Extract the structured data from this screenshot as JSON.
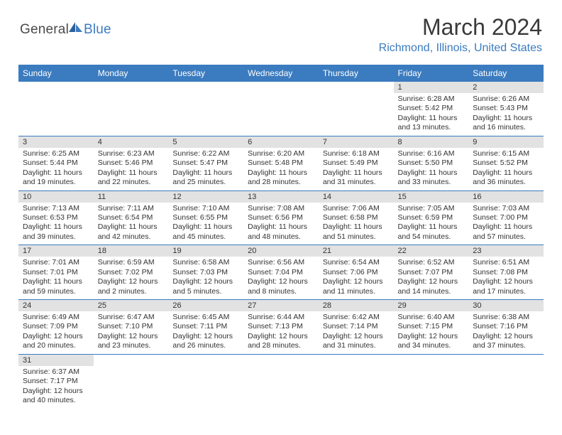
{
  "logo": {
    "general": "General",
    "blue": "Blue"
  },
  "title": "March 2024",
  "location": "Richmond, Illinois, United States",
  "colors": {
    "header_bg": "#3b7bbf",
    "day_number_bg": "#e2e2e2",
    "cell_border": "#3b7bbf",
    "text": "#333333",
    "location_color": "#3b7bbf"
  },
  "weekdays": [
    "Sunday",
    "Monday",
    "Tuesday",
    "Wednesday",
    "Thursday",
    "Friday",
    "Saturday"
  ],
  "weeks": [
    [
      null,
      null,
      null,
      null,
      null,
      {
        "day": "1",
        "sunrise": "Sunrise: 6:28 AM",
        "sunset": "Sunset: 5:42 PM",
        "daylight": "Daylight: 11 hours and 13 minutes."
      },
      {
        "day": "2",
        "sunrise": "Sunrise: 6:26 AM",
        "sunset": "Sunset: 5:43 PM",
        "daylight": "Daylight: 11 hours and 16 minutes."
      }
    ],
    [
      {
        "day": "3",
        "sunrise": "Sunrise: 6:25 AM",
        "sunset": "Sunset: 5:44 PM",
        "daylight": "Daylight: 11 hours and 19 minutes."
      },
      {
        "day": "4",
        "sunrise": "Sunrise: 6:23 AM",
        "sunset": "Sunset: 5:46 PM",
        "daylight": "Daylight: 11 hours and 22 minutes."
      },
      {
        "day": "5",
        "sunrise": "Sunrise: 6:22 AM",
        "sunset": "Sunset: 5:47 PM",
        "daylight": "Daylight: 11 hours and 25 minutes."
      },
      {
        "day": "6",
        "sunrise": "Sunrise: 6:20 AM",
        "sunset": "Sunset: 5:48 PM",
        "daylight": "Daylight: 11 hours and 28 minutes."
      },
      {
        "day": "7",
        "sunrise": "Sunrise: 6:18 AM",
        "sunset": "Sunset: 5:49 PM",
        "daylight": "Daylight: 11 hours and 31 minutes."
      },
      {
        "day": "8",
        "sunrise": "Sunrise: 6:16 AM",
        "sunset": "Sunset: 5:50 PM",
        "daylight": "Daylight: 11 hours and 33 minutes."
      },
      {
        "day": "9",
        "sunrise": "Sunrise: 6:15 AM",
        "sunset": "Sunset: 5:52 PM",
        "daylight": "Daylight: 11 hours and 36 minutes."
      }
    ],
    [
      {
        "day": "10",
        "sunrise": "Sunrise: 7:13 AM",
        "sunset": "Sunset: 6:53 PM",
        "daylight": "Daylight: 11 hours and 39 minutes."
      },
      {
        "day": "11",
        "sunrise": "Sunrise: 7:11 AM",
        "sunset": "Sunset: 6:54 PM",
        "daylight": "Daylight: 11 hours and 42 minutes."
      },
      {
        "day": "12",
        "sunrise": "Sunrise: 7:10 AM",
        "sunset": "Sunset: 6:55 PM",
        "daylight": "Daylight: 11 hours and 45 minutes."
      },
      {
        "day": "13",
        "sunrise": "Sunrise: 7:08 AM",
        "sunset": "Sunset: 6:56 PM",
        "daylight": "Daylight: 11 hours and 48 minutes."
      },
      {
        "day": "14",
        "sunrise": "Sunrise: 7:06 AM",
        "sunset": "Sunset: 6:58 PM",
        "daylight": "Daylight: 11 hours and 51 minutes."
      },
      {
        "day": "15",
        "sunrise": "Sunrise: 7:05 AM",
        "sunset": "Sunset: 6:59 PM",
        "daylight": "Daylight: 11 hours and 54 minutes."
      },
      {
        "day": "16",
        "sunrise": "Sunrise: 7:03 AM",
        "sunset": "Sunset: 7:00 PM",
        "daylight": "Daylight: 11 hours and 57 minutes."
      }
    ],
    [
      {
        "day": "17",
        "sunrise": "Sunrise: 7:01 AM",
        "sunset": "Sunset: 7:01 PM",
        "daylight": "Daylight: 11 hours and 59 minutes."
      },
      {
        "day": "18",
        "sunrise": "Sunrise: 6:59 AM",
        "sunset": "Sunset: 7:02 PM",
        "daylight": "Daylight: 12 hours and 2 minutes."
      },
      {
        "day": "19",
        "sunrise": "Sunrise: 6:58 AM",
        "sunset": "Sunset: 7:03 PM",
        "daylight": "Daylight: 12 hours and 5 minutes."
      },
      {
        "day": "20",
        "sunrise": "Sunrise: 6:56 AM",
        "sunset": "Sunset: 7:04 PM",
        "daylight": "Daylight: 12 hours and 8 minutes."
      },
      {
        "day": "21",
        "sunrise": "Sunrise: 6:54 AM",
        "sunset": "Sunset: 7:06 PM",
        "daylight": "Daylight: 12 hours and 11 minutes."
      },
      {
        "day": "22",
        "sunrise": "Sunrise: 6:52 AM",
        "sunset": "Sunset: 7:07 PM",
        "daylight": "Daylight: 12 hours and 14 minutes."
      },
      {
        "day": "23",
        "sunrise": "Sunrise: 6:51 AM",
        "sunset": "Sunset: 7:08 PM",
        "daylight": "Daylight: 12 hours and 17 minutes."
      }
    ],
    [
      {
        "day": "24",
        "sunrise": "Sunrise: 6:49 AM",
        "sunset": "Sunset: 7:09 PM",
        "daylight": "Daylight: 12 hours and 20 minutes."
      },
      {
        "day": "25",
        "sunrise": "Sunrise: 6:47 AM",
        "sunset": "Sunset: 7:10 PM",
        "daylight": "Daylight: 12 hours and 23 minutes."
      },
      {
        "day": "26",
        "sunrise": "Sunrise: 6:45 AM",
        "sunset": "Sunset: 7:11 PM",
        "daylight": "Daylight: 12 hours and 26 minutes."
      },
      {
        "day": "27",
        "sunrise": "Sunrise: 6:44 AM",
        "sunset": "Sunset: 7:13 PM",
        "daylight": "Daylight: 12 hours and 28 minutes."
      },
      {
        "day": "28",
        "sunrise": "Sunrise: 6:42 AM",
        "sunset": "Sunset: 7:14 PM",
        "daylight": "Daylight: 12 hours and 31 minutes."
      },
      {
        "day": "29",
        "sunrise": "Sunrise: 6:40 AM",
        "sunset": "Sunset: 7:15 PM",
        "daylight": "Daylight: 12 hours and 34 minutes."
      },
      {
        "day": "30",
        "sunrise": "Sunrise: 6:38 AM",
        "sunset": "Sunset: 7:16 PM",
        "daylight": "Daylight: 12 hours and 37 minutes."
      }
    ],
    [
      {
        "day": "31",
        "sunrise": "Sunrise: 6:37 AM",
        "sunset": "Sunset: 7:17 PM",
        "daylight": "Daylight: 12 hours and 40 minutes."
      },
      null,
      null,
      null,
      null,
      null,
      null
    ]
  ]
}
